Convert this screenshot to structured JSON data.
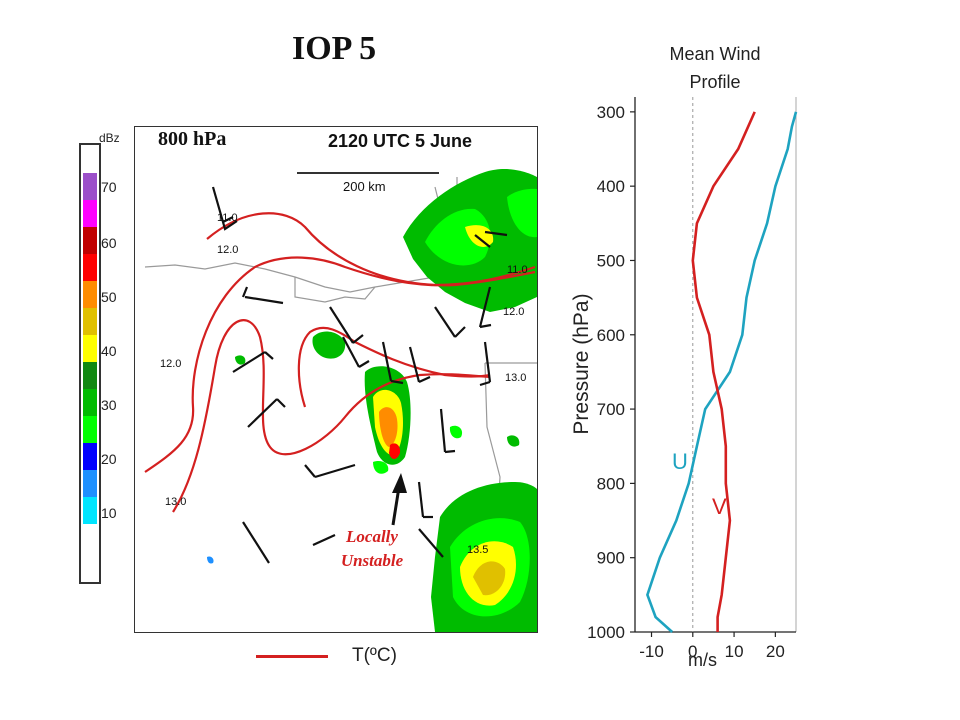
{
  "title": "IOP 5",
  "map": {
    "level": "800 hPa",
    "timestamp": "2120 UTC 5 June",
    "scale_bar_label": "200 km",
    "isotherm_labels": [
      "11.0",
      "12.0",
      "11.0",
      "12.0",
      "12.0",
      "13.0",
      "13.0",
      "13.5"
    ],
    "annotation_line1": "Locally",
    "annotation_line2": "Unstable"
  },
  "reflectivity_scale": {
    "unit": "dBz",
    "tick_labels": [
      "70",
      "60",
      "50",
      "40",
      "30",
      "20",
      "10"
    ],
    "colors": [
      "#9b4fc9",
      "#ff00ff",
      "#c00000",
      "#ff0000",
      "#ff8c00",
      "#e0c000",
      "#ffff00",
      "#118811",
      "#00bb00",
      "#00ff00",
      "#0000ff",
      "#1e90ff",
      "#00e5ff"
    ]
  },
  "legend": {
    "label": "T(ºC)",
    "color": "#d42020"
  },
  "profile": {
    "title_line1": "Mean Wind",
    "title_line2": "Profile",
    "y_label": "Pressure (hPa)",
    "x_label": "m/s",
    "y_ticks": [
      "300",
      "400",
      "500",
      "600",
      "700",
      "800",
      "900",
      "1000"
    ],
    "x_ticks": [
      "-10",
      "0",
      "10",
      "20"
    ],
    "u_label": "U",
    "v_label": "V",
    "u_color": "#1ea3c0",
    "v_color": "#d42020"
  },
  "chart_data": {
    "type": "line",
    "title": "",
    "xlabel": "m/s",
    "ylabel": "Pressure (hPa)",
    "xlim": [
      -14,
      25
    ],
    "ylim": [
      1000,
      280
    ],
    "y_inverted": true,
    "series": [
      {
        "name": "U",
        "points": [
          [
            25,
            300
          ],
          [
            24,
            320
          ],
          [
            23,
            350
          ],
          [
            20,
            400
          ],
          [
            18,
            450
          ],
          [
            15,
            500
          ],
          [
            13,
            550
          ],
          [
            12,
            600
          ],
          [
            9,
            650
          ],
          [
            3,
            700
          ],
          [
            1,
            750
          ],
          [
            -1,
            800
          ],
          [
            -4,
            850
          ],
          [
            -8,
            900
          ],
          [
            -11,
            950
          ],
          [
            -9,
            980
          ],
          [
            -5,
            1000
          ]
        ]
      },
      {
        "name": "V",
        "points": [
          [
            15,
            300
          ],
          [
            11,
            350
          ],
          [
            5,
            400
          ],
          [
            1,
            450
          ],
          [
            0,
            500
          ],
          [
            1,
            550
          ],
          [
            4,
            600
          ],
          [
            5,
            650
          ],
          [
            7,
            700
          ],
          [
            8,
            750
          ],
          [
            8,
            800
          ],
          [
            9,
            850
          ],
          [
            8,
            900
          ],
          [
            7,
            950
          ],
          [
            6,
            980
          ],
          [
            6,
            1000
          ]
        ]
      }
    ]
  }
}
